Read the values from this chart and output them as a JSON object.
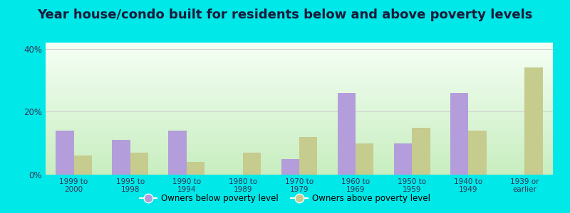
{
  "title": "Year house/condo built for residents below and above poverty levels",
  "categories": [
    "1999 to\n2000",
    "1995 to\n1998",
    "1990 to\n1994",
    "1980 to\n1989",
    "1970 to\n1979",
    "1960 to\n1969",
    "1950 to\n1959",
    "1940 to\n1949",
    "1939 or\nearlier"
  ],
  "below_poverty": [
    14,
    11,
    14,
    0,
    5,
    26,
    10,
    26,
    0
  ],
  "above_poverty": [
    6,
    7,
    4,
    7,
    12,
    10,
    15,
    14,
    34
  ],
  "below_color": "#b39ddb",
  "above_color": "#c5cc8e",
  "outer_background": "#00e8e8",
  "ylim": [
    0,
    42
  ],
  "yticks": [
    0,
    20,
    40
  ],
  "ytick_labels": [
    "0%",
    "20%",
    "40%"
  ],
  "legend_below": "Owners below poverty level",
  "legend_above": "Owners above poverty level",
  "title_fontsize": 13,
  "bar_width": 0.32,
  "grid_color": "#cccccc",
  "grad_bottom": "#c8eec0",
  "grad_top": "#f5fff5",
  "tick_color": "#333355",
  "title_color": "#1a1a3a"
}
